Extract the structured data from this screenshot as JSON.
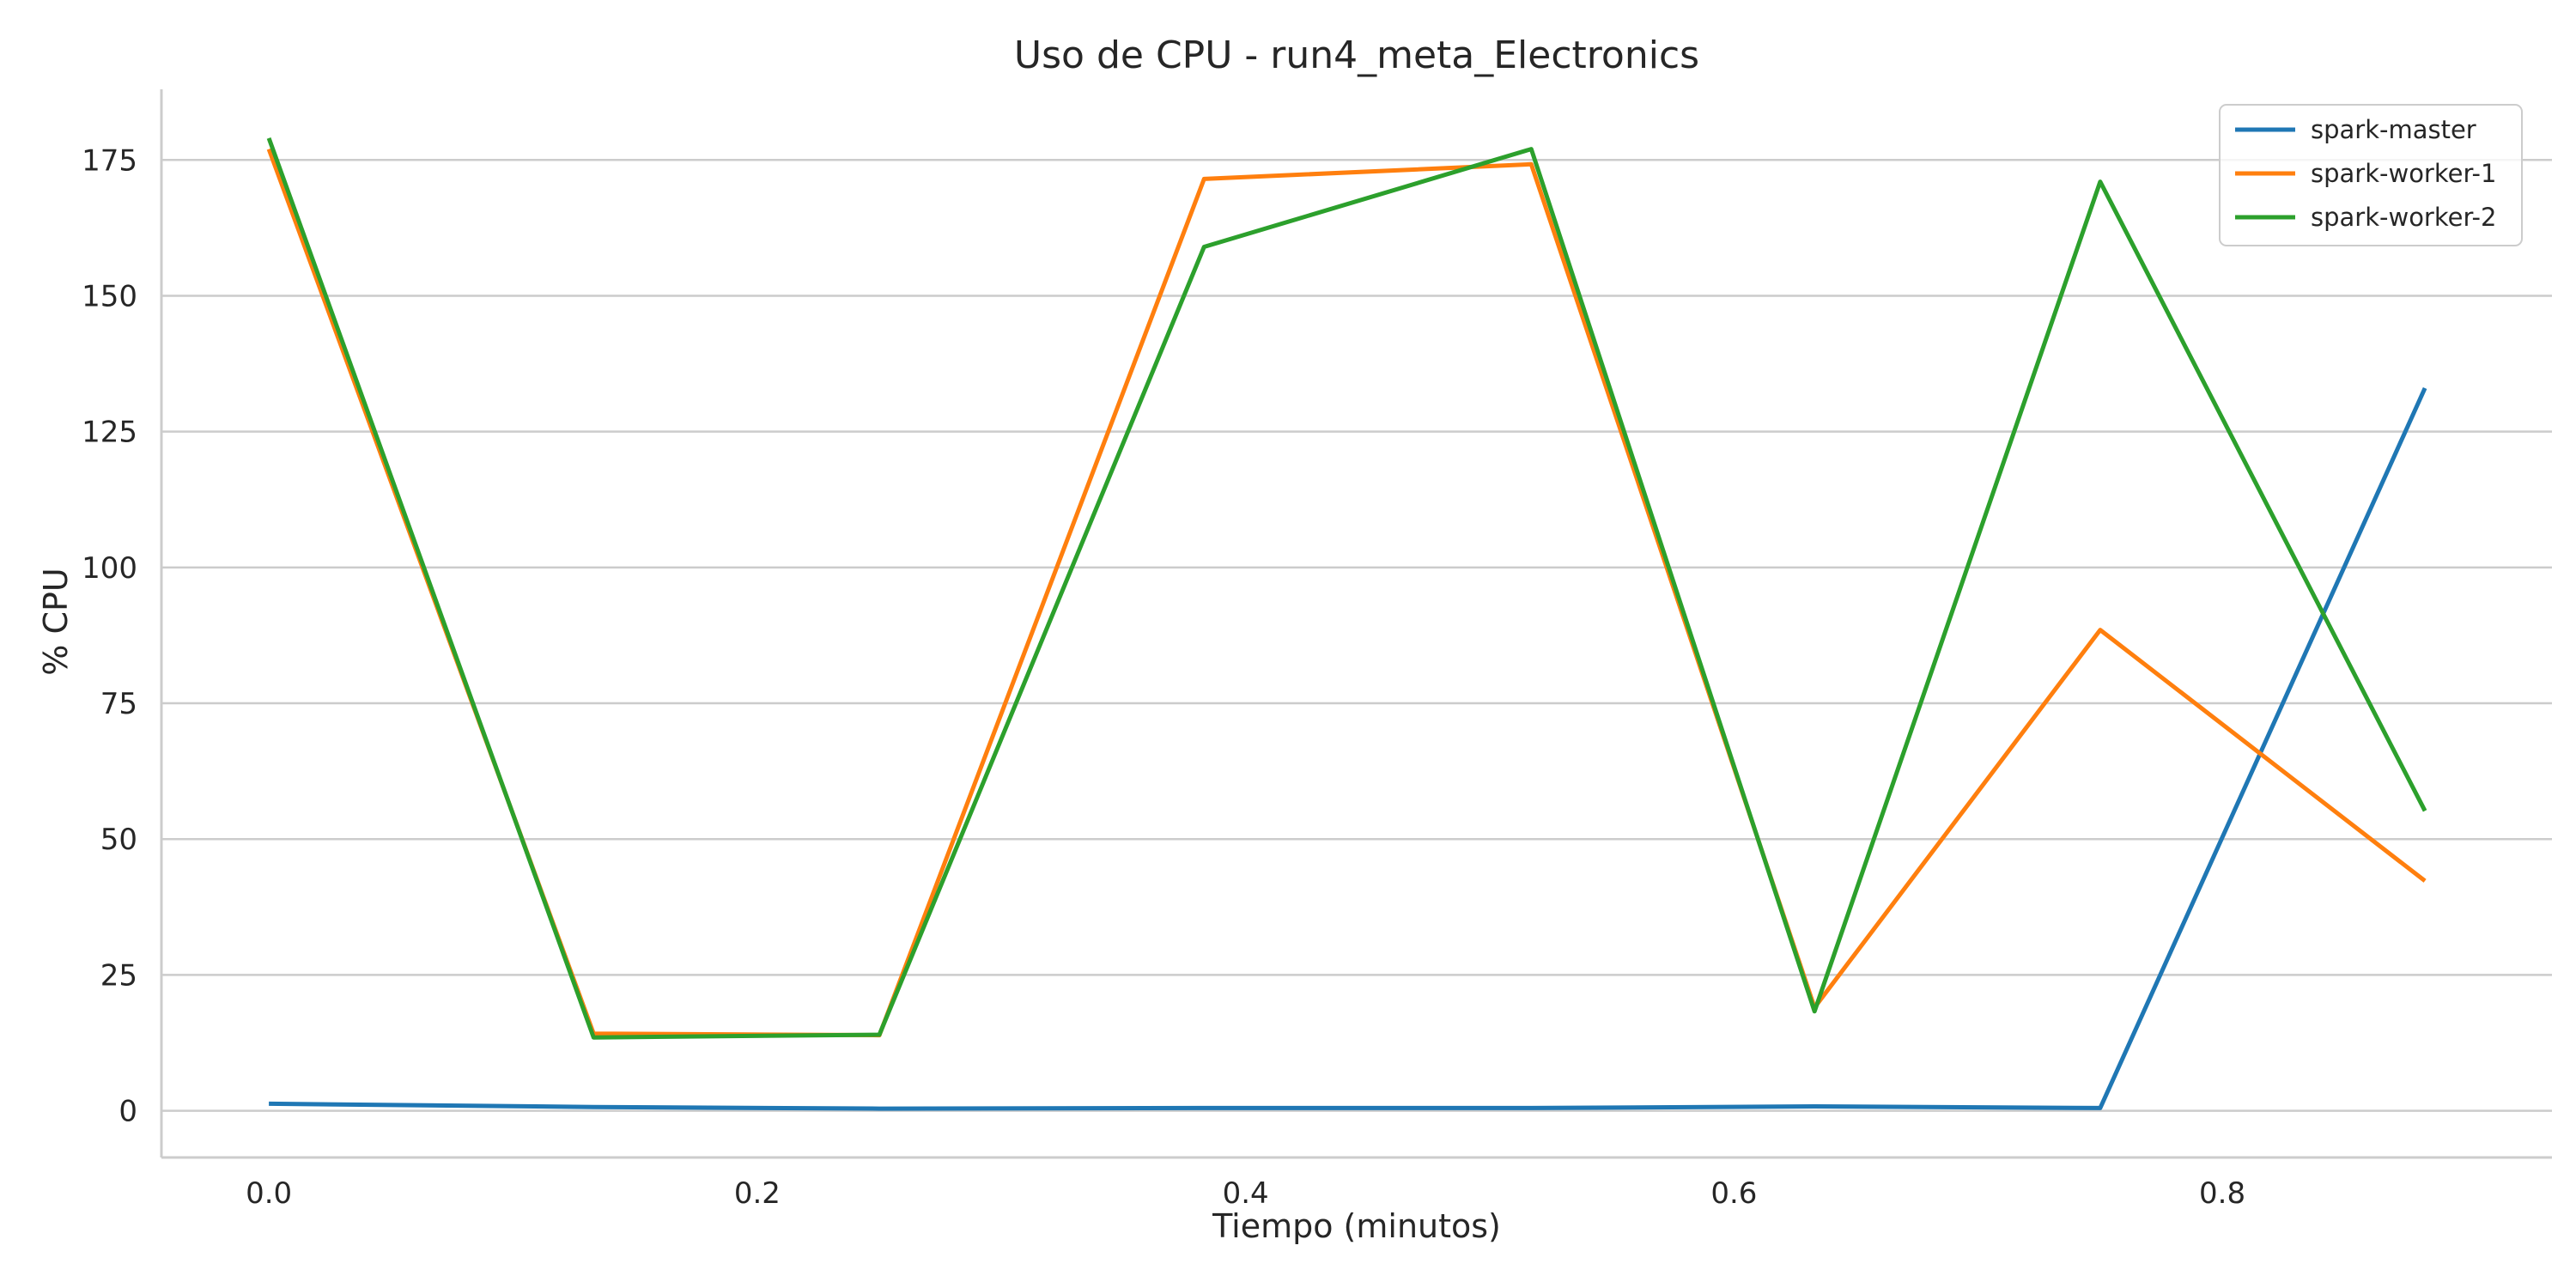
{
  "chart_data": {
    "type": "line",
    "title": "Uso de CPU - run4_meta_Electronics",
    "xlabel": "Tiempo (minutos)",
    "ylabel": "% CPU",
    "xlim": [
      -0.044,
      0.935
    ],
    "ylim": [
      -8.6,
      188
    ],
    "x_ticks": [
      0.0,
      0.2,
      0.4,
      0.6,
      0.8
    ],
    "x_tick_labels": [
      "0.0",
      "0.2",
      "0.4",
      "0.6",
      "0.8"
    ],
    "y_ticks": [
      0,
      25,
      50,
      75,
      100,
      125,
      150,
      175
    ],
    "y_tick_labels": [
      "0",
      "25",
      "50",
      "75",
      "100",
      "125",
      "150",
      "175"
    ],
    "grid": "horizontal",
    "legend_position": "top-right",
    "x": [
      0.0,
      0.133,
      0.25,
      0.383,
      0.517,
      0.633,
      0.75,
      0.883
    ],
    "series": [
      {
        "name": "spark-master",
        "color": "#1f77b4",
        "values": [
          1.3,
          0.7,
          0.4,
          0.5,
          0.5,
          0.8,
          0.5,
          133
        ]
      },
      {
        "name": "spark-worker-1",
        "color": "#ff7f0e",
        "values": [
          177,
          14.2,
          13.9,
          171.5,
          174.2,
          19.0,
          88.5,
          42.3
        ]
      },
      {
        "name": "spark-worker-2",
        "color": "#2ca02c",
        "values": [
          179,
          13.5,
          14.0,
          159,
          177,
          18.3,
          171,
          55.2
        ]
      }
    ]
  }
}
